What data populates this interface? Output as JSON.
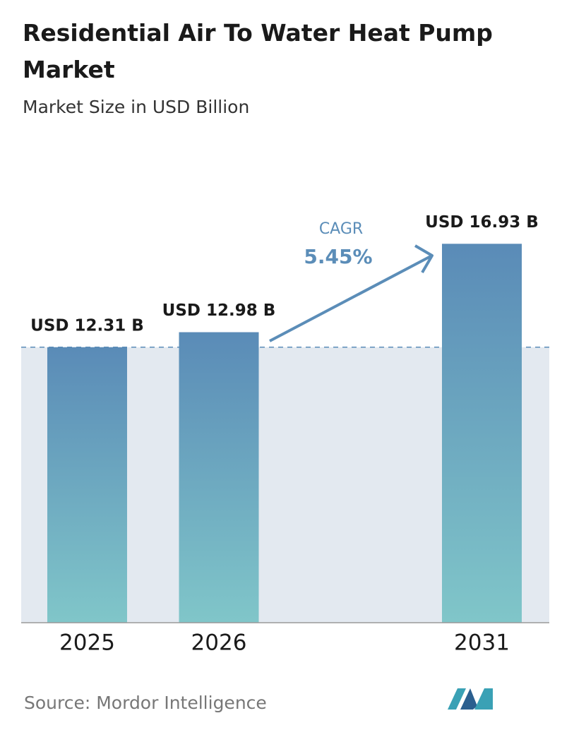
{
  "chart_data": {
    "type": "bar",
    "title": "Residential Air To Water Heat Pump Market",
    "subtitle": "Market Size in USD Billion",
    "categories": [
      "2025",
      "2026",
      "2031"
    ],
    "values": [
      12.31,
      12.98,
      16.93
    ],
    "value_labels": [
      "USD 12.31 B",
      "USD 12.98 B",
      "USD 16.93 B"
    ],
    "colors": [
      "#5a8bb7",
      "#80c6c9"
    ],
    "ylim": [
      0,
      20
    ],
    "annotations": {
      "cagr_label": "CAGR",
      "cagr_value": "5.45%"
    },
    "source": "Source: Mordor Intelligence"
  }
}
